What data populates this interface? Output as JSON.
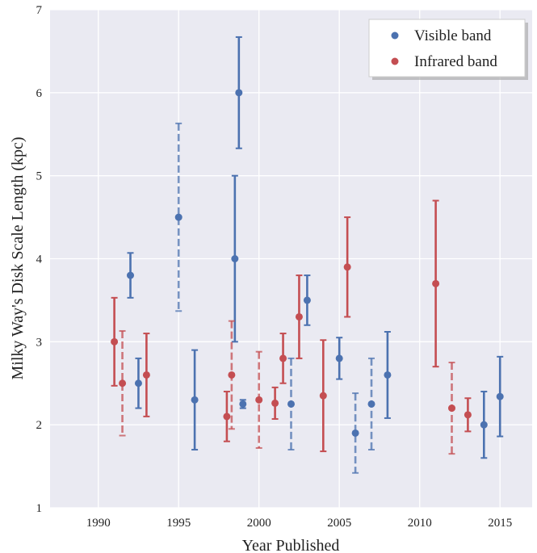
{
  "chart_data": {
    "type": "scatter",
    "xlabel": "Year Published",
    "ylabel": "Milky Way's Disk Scale Length (kpc)",
    "xlim": [
      1987,
      2017
    ],
    "ylim": [
      1,
      7
    ],
    "xticks": [
      "1990",
      "1995",
      "2000",
      "2005",
      "2010",
      "2015"
    ],
    "yticks": [
      "1",
      "2",
      "3",
      "4",
      "5",
      "6",
      "7"
    ],
    "grid": true,
    "legend_position": "top-right",
    "series": [
      {
        "name": "Visible band",
        "color": "#4c72b0",
        "points": [
          {
            "x": 1992.0,
            "y": 3.8,
            "lo": 3.53,
            "hi": 4.07,
            "dashed": false
          },
          {
            "x": 1992.5,
            "y": 2.5,
            "lo": 2.2,
            "hi": 2.8,
            "dashed": false
          },
          {
            "x": 1995.0,
            "y": 4.5,
            "lo": 3.37,
            "hi": 5.63,
            "dashed": true
          },
          {
            "x": 1996.0,
            "y": 2.3,
            "lo": 1.7,
            "hi": 2.9,
            "dashed": false
          },
          {
            "x": 1998.5,
            "y": 4.0,
            "lo": 3.0,
            "hi": 5.0,
            "dashed": false
          },
          {
            "x": 1998.75,
            "y": 6.0,
            "lo": 5.33,
            "hi": 6.67,
            "dashed": false
          },
          {
            "x": 1999.0,
            "y": 2.25,
            "lo": 2.2,
            "hi": 2.3,
            "dashed": false
          },
          {
            "x": 2002.0,
            "y": 2.25,
            "lo": 1.7,
            "hi": 2.8,
            "dashed": true
          },
          {
            "x": 2003.0,
            "y": 3.5,
            "lo": 3.2,
            "hi": 3.8,
            "dashed": false
          },
          {
            "x": 2005.0,
            "y": 2.8,
            "lo": 2.55,
            "hi": 3.05,
            "dashed": false
          },
          {
            "x": 2006.0,
            "y": 1.9,
            "lo": 1.42,
            "hi": 2.38,
            "dashed": true
          },
          {
            "x": 2007.0,
            "y": 2.25,
            "lo": 1.7,
            "hi": 2.8,
            "dashed": true
          },
          {
            "x": 2008.0,
            "y": 2.6,
            "lo": 2.08,
            "hi": 3.12,
            "dashed": false
          },
          {
            "x": 2014.0,
            "y": 2.0,
            "lo": 1.6,
            "hi": 2.4,
            "dashed": false
          },
          {
            "x": 2015.0,
            "y": 2.34,
            "lo": 1.86,
            "hi": 2.82,
            "dashed": false
          }
        ]
      },
      {
        "name": "Infrared band",
        "color": "#c44e52",
        "points": [
          {
            "x": 1991.0,
            "y": 3.0,
            "lo": 2.47,
            "hi": 3.53,
            "dashed": false
          },
          {
            "x": 1991.5,
            "y": 2.5,
            "lo": 1.87,
            "hi": 3.13,
            "dashed": true
          },
          {
            "x": 1993.0,
            "y": 2.6,
            "lo": 2.1,
            "hi": 3.1,
            "dashed": false
          },
          {
            "x": 1998.0,
            "y": 2.1,
            "lo": 1.8,
            "hi": 2.4,
            "dashed": false
          },
          {
            "x": 1998.3,
            "y": 2.6,
            "lo": 1.95,
            "hi": 3.25,
            "dashed": true
          },
          {
            "x": 2000.0,
            "y": 2.3,
            "lo": 1.72,
            "hi": 2.88,
            "dashed": true
          },
          {
            "x": 2001.0,
            "y": 2.26,
            "lo": 2.07,
            "hi": 2.45,
            "dashed": false
          },
          {
            "x": 2001.5,
            "y": 2.8,
            "lo": 2.5,
            "hi": 3.1,
            "dashed": false
          },
          {
            "x": 2002.5,
            "y": 3.3,
            "lo": 2.8,
            "hi": 3.8,
            "dashed": false
          },
          {
            "x": 2004.0,
            "y": 2.35,
            "lo": 1.68,
            "hi": 3.02,
            "dashed": false
          },
          {
            "x": 2005.5,
            "y": 3.9,
            "lo": 3.3,
            "hi": 4.5,
            "dashed": false
          },
          {
            "x": 2011.0,
            "y": 3.7,
            "lo": 2.7,
            "hi": 4.7,
            "dashed": false
          },
          {
            "x": 2012.0,
            "y": 2.2,
            "lo": 1.65,
            "hi": 2.75,
            "dashed": true
          },
          {
            "x": 2013.0,
            "y": 2.12,
            "lo": 1.92,
            "hi": 2.32,
            "dashed": false
          }
        ]
      }
    ]
  }
}
